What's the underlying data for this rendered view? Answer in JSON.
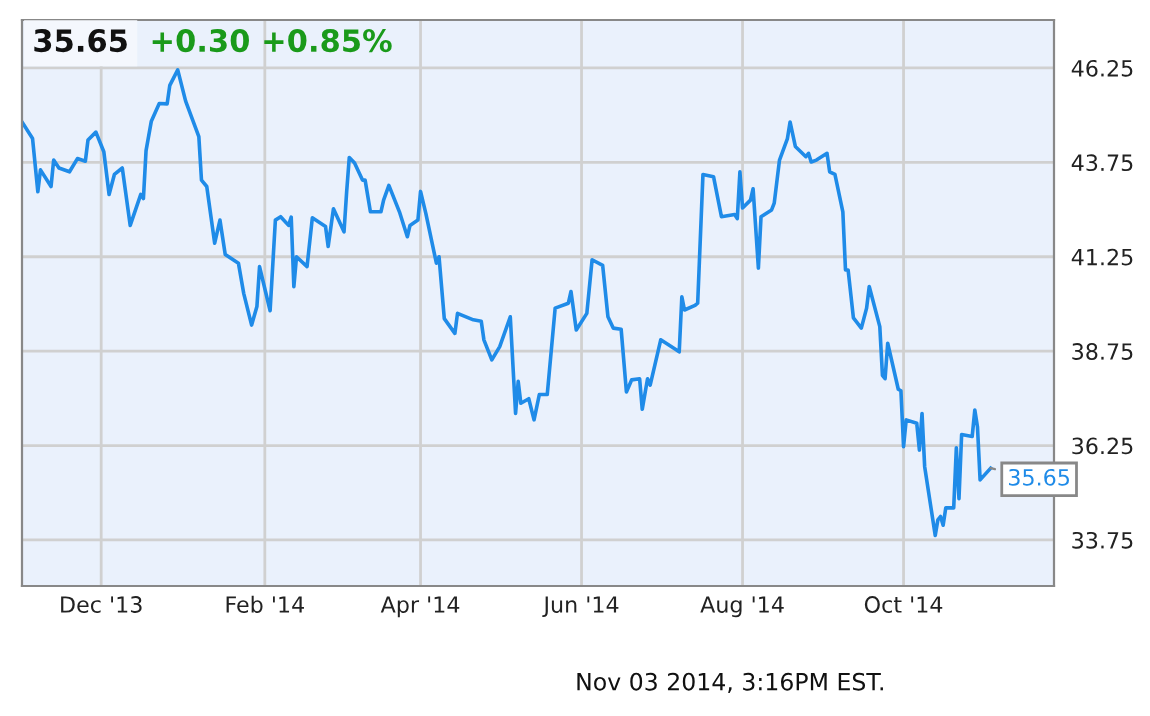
{
  "chart_data": {
    "type": "line",
    "title": "35.65",
    "subtitle": "+0.30 +0.85%",
    "x": [
      "2013-11-01",
      "2013-11-05",
      "2013-11-07",
      "2013-11-08",
      "2013-11-12",
      "2013-11-13",
      "2013-11-15",
      "2013-11-19",
      "2013-11-22",
      "2013-11-25",
      "2013-11-26",
      "2013-11-29",
      "2013-12-02",
      "2013-12-04",
      "2013-12-06",
      "2013-12-09",
      "2013-12-12",
      "2013-12-16",
      "2013-12-17",
      "2013-12-18",
      "2013-12-20",
      "2013-12-23",
      "2013-12-26",
      "2013-12-27",
      "2013-12-30",
      "2014-01-02",
      "2014-01-07",
      "2014-01-08",
      "2014-01-10",
      "2014-01-13",
      "2014-01-15",
      "2014-01-17",
      "2014-01-22",
      "2014-01-24",
      "2014-01-27",
      "2014-01-29",
      "2014-01-30",
      "2014-02-03",
      "2014-02-05",
      "2014-02-07",
      "2014-02-10",
      "2014-02-11",
      "2014-02-12",
      "2014-02-13",
      "2014-02-17",
      "2014-02-19",
      "2014-02-24",
      "2014-02-25",
      "2014-02-27",
      "2014-03-03",
      "2014-03-04",
      "2014-03-05",
      "2014-03-07",
      "2014-03-10",
      "2014-03-11",
      "2014-03-13",
      "2014-03-17",
      "2014-03-18",
      "2014-03-20",
      "2014-03-24",
      "2014-03-27",
      "2014-03-28",
      "2014-03-31",
      "2014-04-01",
      "2014-04-03",
      "2014-04-07",
      "2014-04-08",
      "2014-04-10",
      "2014-04-14",
      "2014-04-15",
      "2014-04-21",
      "2014-04-24",
      "2014-04-25",
      "2014-04-28",
      "2014-05-01",
      "2014-05-05",
      "2014-05-07",
      "2014-05-08",
      "2014-05-09",
      "2014-05-12",
      "2014-05-14",
      "2014-05-16",
      "2014-05-19",
      "2014-05-22",
      "2014-05-27",
      "2014-05-28",
      "2014-05-30",
      "2014-06-03",
      "2014-06-05",
      "2014-06-09",
      "2014-06-11",
      "2014-06-13",
      "2014-06-16",
      "2014-06-18",
      "2014-06-20",
      "2014-06-23",
      "2014-06-24",
      "2014-06-26",
      "2014-06-27",
      "2014-07-01",
      "2014-07-07",
      "2014-07-08",
      "2014-07-09",
      "2014-07-10",
      "2014-07-14",
      "2014-07-15",
      "2014-07-17",
      "2014-07-21",
      "2014-07-24",
      "2014-07-29",
      "2014-07-30",
      "2014-07-31",
      "2014-08-01",
      "2014-08-04",
      "2014-08-05",
      "2014-08-07",
      "2014-08-08",
      "2014-08-12",
      "2014-08-13",
      "2014-08-15",
      "2014-08-18",
      "2014-08-19",
      "2014-08-21",
      "2014-08-25",
      "2014-08-26",
      "2014-08-27",
      "2014-08-29",
      "2014-09-02",
      "2014-09-03",
      "2014-09-05",
      "2014-09-08",
      "2014-09-09",
      "2014-09-10",
      "2014-09-12",
      "2014-09-15",
      "2014-09-17",
      "2014-09-18",
      "2014-09-22",
      "2014-09-23",
      "2014-09-24",
      "2014-09-25",
      "2014-09-29",
      "2014-09-30",
      "2014-10-01",
      "2014-10-02",
      "2014-10-06",
      "2014-10-07",
      "2014-10-08",
      "2014-10-09",
      "2014-10-13",
      "2014-10-14",
      "2014-10-15",
      "2014-10-16",
      "2014-10-17",
      "2014-10-20",
      "2014-10-21",
      "2014-10-22",
      "2014-10-23",
      "2014-10-27",
      "2014-10-28",
      "2014-10-29",
      "2014-10-30",
      "2014-11-03"
    ],
    "series": [
      {
        "color": "#1f8be8",
        "values": [
          44.82,
          44.38,
          42.97,
          43.55,
          43.11,
          43.81,
          43.6,
          43.5,
          43.85,
          43.78,
          44.34,
          44.55,
          44.03,
          42.9,
          43.43,
          43.6,
          42.08,
          42.9,
          42.79,
          44.06,
          44.84,
          45.31,
          45.3,
          45.79,
          46.2,
          45.37,
          44.43,
          43.28,
          43.11,
          41.61,
          42.22,
          41.31,
          41.08,
          40.28,
          39.44,
          39.93,
          40.99,
          39.82,
          42.22,
          42.31,
          42.08,
          42.3,
          40.46,
          41.25,
          40.99,
          42.28,
          42.05,
          41.52,
          42.52,
          41.91,
          42.97,
          43.88,
          43.73,
          43.28,
          43.28,
          42.44,
          42.44,
          42.75,
          43.14,
          42.44,
          41.78,
          42.08,
          42.22,
          42.98,
          42.4,
          41.08,
          41.25,
          39.61,
          39.22,
          39.75,
          39.58,
          39.54,
          39.05,
          38.52,
          38.87,
          39.66,
          37.1,
          37.95,
          37.37,
          37.49,
          36.93,
          37.6,
          37.6,
          39.89,
          40.02,
          40.33,
          39.31,
          39.75,
          41.17,
          41.02,
          39.66,
          39.36,
          39.33,
          37.67,
          37.99,
          38.02,
          37.21,
          38.02,
          37.85,
          39.05,
          38.78,
          38.73,
          40.19,
          39.84,
          39.96,
          40.02,
          43.43,
          43.37,
          42.31,
          42.37,
          42.26,
          43.5,
          42.54,
          42.75,
          43.05,
          40.95,
          42.31,
          42.49,
          42.67,
          43.81,
          44.38,
          44.82,
          44.17,
          43.9,
          43.99,
          43.76,
          43.81,
          43.99,
          43.5,
          43.43,
          42.44,
          40.9,
          40.9,
          39.63,
          39.36,
          39.89,
          40.46,
          39.4,
          38.11,
          38.02,
          38.96,
          37.74,
          37.7,
          36.22,
          36.93,
          36.84,
          36.13,
          37.1,
          35.69,
          33.87,
          34.28,
          34.37,
          34.14,
          34.6,
          34.6,
          36.19,
          34.84,
          36.54,
          36.49,
          37.19,
          36.75,
          35.34,
          35.65
        ]
      }
    ],
    "annotations": [
      {
        "text": "35.65",
        "x": "2014-11-03",
        "y": 35.65
      },
      "Nov 03 2014, 3:16PM EST."
    ],
    "xlim": [
      "2013-11-01",
      "2014-11-27"
    ],
    "xticks": [
      {
        "value": "2013-12-01",
        "label": "Dec '13"
      },
      {
        "value": "2014-02-01",
        "label": "Feb '14"
      },
      {
        "value": "2014-04-01",
        "label": "Apr '14"
      },
      {
        "value": "2014-06-01",
        "label": "Jun '14"
      },
      {
        "value": "2014-08-01",
        "label": "Aug '14"
      },
      {
        "value": "2014-10-01",
        "label": "Oct '14"
      }
    ],
    "ylim": [
      32.53,
      47.52
    ],
    "yticks": [
      33.75,
      36.25,
      38.75,
      41.25,
      43.75,
      46.25
    ],
    "grid": true,
    "legend": false
  }
}
